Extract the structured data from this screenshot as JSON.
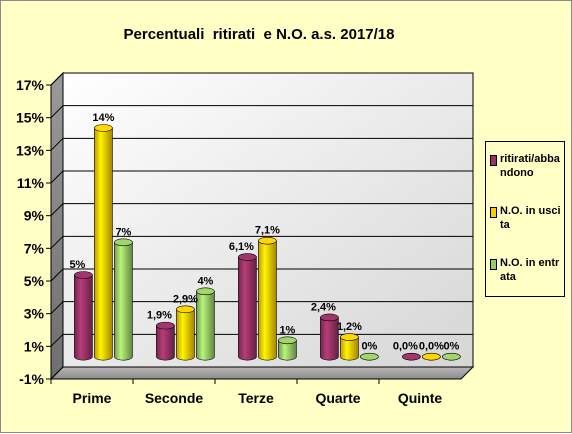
{
  "chart_data": {
    "type": "bar",
    "title": "Percentuali  ritirati  e N.O. a.s. 2017/18",
    "categories": [
      "Prime",
      "Seconde",
      "Terze",
      "Quarte",
      "Quinte"
    ],
    "series": [
      {
        "name": "ritirati/abbandono",
        "color": "#993366",
        "values": [
          5,
          1.9,
          6.1,
          2.4,
          0
        ],
        "labels": [
          "5%",
          "1,9%",
          "6,1%",
          "2,4%",
          "0,0%"
        ]
      },
      {
        "name": "N.O. in uscita",
        "color": "#ffcc00",
        "values": [
          14,
          2.9,
          7.1,
          1.2,
          0
        ],
        "labels": [
          "14%",
          "2,9%",
          "7,1%",
          "1,2%",
          "0,0%"
        ]
      },
      {
        "name": "N.O. in entrata",
        "color": "#99cc66",
        "values": [
          7,
          4,
          1,
          0,
          0
        ],
        "labels": [
          "7%",
          "4%",
          "1%",
          "0%",
          "0%"
        ]
      }
    ],
    "yticks": [
      "-1%",
      "1%",
      "3%",
      "5%",
      "7%",
      "9%",
      "11%",
      "13%",
      "15%",
      "17%"
    ],
    "ylim": [
      -1,
      17
    ],
    "grid": true,
    "legend_position": "right"
  }
}
